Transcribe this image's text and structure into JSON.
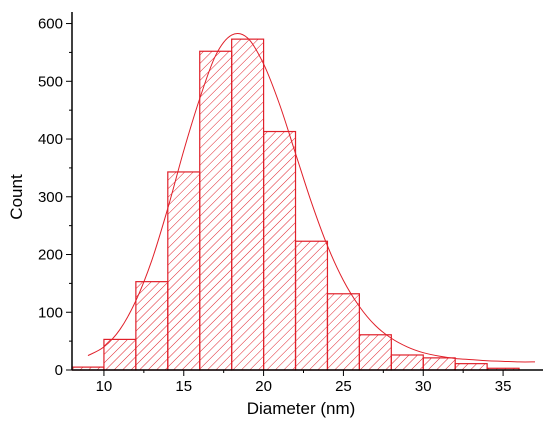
{
  "chart_data": {
    "type": "bar",
    "title": "",
    "xlabel": "Diameter (nm)",
    "ylabel": "Count",
    "xlim": [
      8,
      37.5
    ],
    "ylim": [
      0,
      620
    ],
    "x_ticks": [
      10,
      15,
      20,
      25,
      30,
      35
    ],
    "y_ticks": [
      0,
      100,
      200,
      300,
      400,
      500,
      600
    ],
    "bin_edges": [
      8,
      10,
      12,
      14,
      16,
      18,
      20,
      22,
      24,
      26,
      28,
      30,
      32,
      34,
      36
    ],
    "counts": [
      5,
      53,
      153,
      343,
      552,
      573,
      413,
      223,
      132,
      61,
      26,
      21,
      11,
      3
    ],
    "fit_curve": {
      "type": "lognormal-fit",
      "x": [
        9,
        10,
        11,
        12,
        13,
        14,
        15,
        16,
        17,
        18,
        19,
        20,
        21,
        22,
        23,
        24,
        25,
        26,
        27,
        28,
        29,
        30,
        31,
        32,
        33,
        34,
        35,
        36,
        37
      ],
      "y": [
        25,
        40,
        70,
        120,
        190,
        280,
        380,
        470,
        545,
        580,
        575,
        530,
        460,
        375,
        290,
        215,
        155,
        110,
        77,
        55,
        40,
        30,
        24,
        20,
        18,
        16,
        15,
        14,
        14
      ]
    },
    "colors": {
      "bars": "#e0202a",
      "fit": "#e0202a",
      "axis": "#000000"
    },
    "grid": false,
    "legend": "none"
  }
}
